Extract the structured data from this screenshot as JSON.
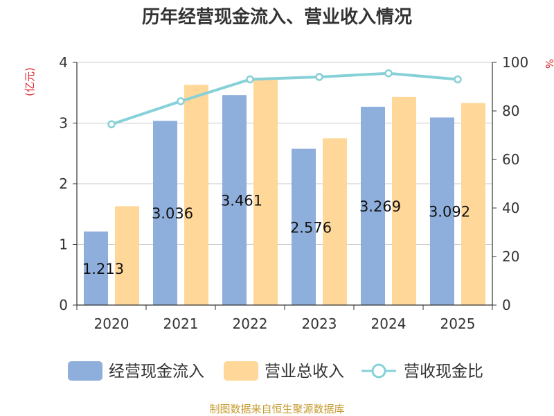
{
  "colors": {
    "bar_cash": "#8eaedb",
    "bar_revenue": "#ffd899",
    "line_ratio": "#86d1d8",
    "unit_text": "#d9242a",
    "source_text": "#c79a2e"
  },
  "source_note": "制图数据来自恒生聚源数据库",
  "chart_data": {
    "type": "bar",
    "title": "历年经营现金流入、营业收入情况",
    "categories": [
      "2020",
      "2021",
      "2022",
      "2023",
      "2024",
      "2025"
    ],
    "series": [
      {
        "name": "经营现金流入",
        "kind": "bar",
        "axis": "left",
        "values": [
          1.213,
          3.036,
          3.461,
          2.576,
          3.269,
          3.092
        ],
        "data_labels": [
          "1.213",
          "3.036",
          "3.461",
          "2.576",
          "3.269",
          "3.092"
        ]
      },
      {
        "name": "营业总收入",
        "kind": "bar",
        "axis": "left",
        "values": [
          1.63,
          3.63,
          3.75,
          2.75,
          3.43,
          3.33
        ]
      },
      {
        "name": "营收现金比",
        "kind": "line",
        "axis": "right",
        "values": [
          74.5,
          84,
          93,
          94,
          95.5,
          93
        ]
      }
    ],
    "left_axis": {
      "unit_label": "(亿元)",
      "ylim": [
        0,
        4
      ],
      "ticks": [
        "0",
        "1",
        "2",
        "3",
        "4"
      ]
    },
    "right_axis": {
      "unit_label": "%",
      "ylim": [
        0,
        100
      ],
      "ticks": [
        "0",
        "20",
        "40",
        "60",
        "80",
        "100"
      ]
    },
    "grid": true,
    "legend_position": "bottom"
  }
}
